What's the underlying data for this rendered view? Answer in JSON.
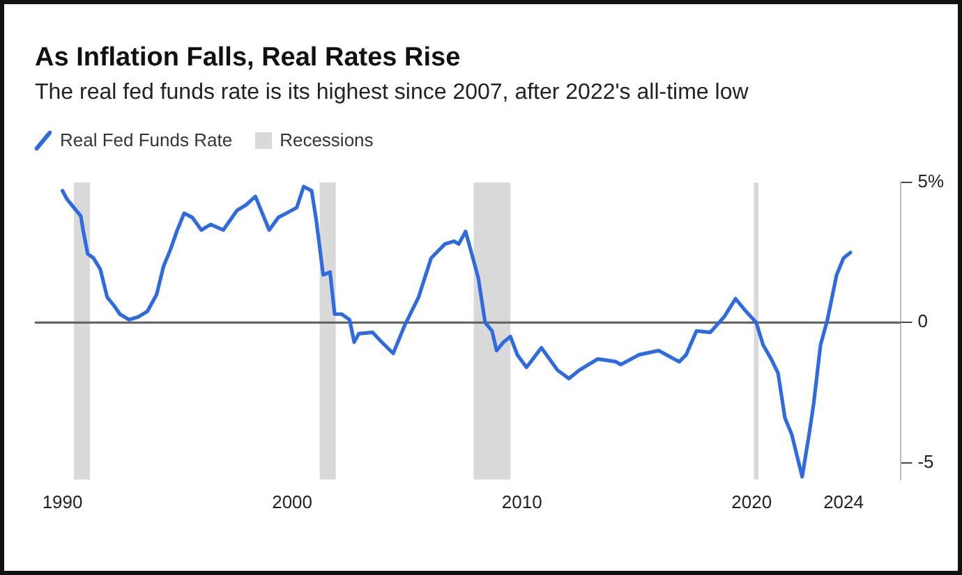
{
  "chart_data": {
    "type": "line",
    "title": "As Inflation Falls, Real Rates Rise",
    "subtitle": "The real fed funds rate is its highest since 2007, after 2022's all-time low",
    "series": [
      {
        "name": "Real Fed Funds Rate",
        "color": "#2f6be0",
        "x": [
          1990.0,
          1990.2,
          1990.5,
          1990.8,
          1990.9,
          1991.1,
          1991.35,
          1991.65,
          1991.95,
          1992.25,
          1992.5,
          1992.9,
          1993.3,
          1993.7,
          1994.1,
          1994.4,
          1994.7,
          1995.0,
          1995.3,
          1995.65,
          1996.05,
          1996.45,
          1997.0,
          1997.6,
          1998.0,
          1998.4,
          1998.7,
          1999.0,
          1999.4,
          1999.75,
          2000.2,
          2000.5,
          2000.85,
          2001.05,
          2001.35,
          2001.65,
          2001.85,
          2002.15,
          2002.5,
          2002.7,
          2002.9,
          2003.5,
          2003.9,
          2004.4,
          2004.9,
          2005.5,
          2006.05,
          2006.65,
          2007.05,
          2007.25,
          2007.55,
          2007.8,
          2008.1,
          2008.4,
          2008.7,
          2008.9,
          2009.2,
          2009.5,
          2009.8,
          2010.2,
          2010.85,
          2011.55,
          2012.05,
          2012.5,
          2013.3,
          2014.1,
          2014.3,
          2015.1,
          2015.95,
          2016.85,
          2017.15,
          2017.6,
          2018.2,
          2018.8,
          2019.3,
          2019.7,
          2020.2,
          2020.5,
          2020.85,
          2021.15,
          2021.45,
          2021.75,
          2022.2,
          2022.5,
          2022.7,
          2023.0,
          2023.3,
          2023.7,
          2024.0,
          2024.3
        ],
        "values": [
          4.7,
          4.4,
          4.1,
          3.8,
          3.3,
          2.45,
          2.3,
          1.9,
          0.9,
          0.6,
          0.3,
          0.1,
          0.2,
          0.4,
          1.0,
          2.0,
          2.6,
          3.3,
          3.9,
          3.75,
          3.3,
          3.5,
          3.3,
          4.0,
          4.2,
          4.5,
          3.9,
          3.3,
          3.75,
          3.9,
          4.1,
          4.85,
          4.7,
          3.65,
          1.7,
          1.8,
          0.3,
          0.3,
          0.1,
          -0.7,
          -0.4,
          -0.35,
          -0.7,
          -1.1,
          -0.1,
          0.9,
          2.3,
          2.8,
          2.9,
          2.8,
          3.25,
          2.5,
          1.6,
          0.0,
          -0.3,
          -1.0,
          -0.7,
          -0.5,
          -1.15,
          -1.6,
          -0.9,
          -1.7,
          -2.0,
          -1.7,
          -1.3,
          -1.4,
          -1.5,
          -1.15,
          -1.0,
          -1.4,
          -1.15,
          -0.3,
          -0.35,
          0.2,
          0.85,
          0.45,
          0.0,
          -0.8,
          -1.3,
          -1.8,
          -3.4,
          -4.0,
          -5.5,
          -4.0,
          -2.9,
          -0.8,
          0.1,
          1.7,
          2.3,
          2.5
        ]
      }
    ],
    "xlim": [
      1988.8,
      2026.5
    ],
    "xticks": [
      1990,
      2000,
      2010,
      2020,
      2024
    ],
    "ylim": [
      -5.6,
      5
    ],
    "yticks": [
      {
        "value": 5,
        "label": "5%"
      },
      0,
      -5
    ],
    "bands": [
      {
        "axis": "x",
        "from": 1990.5,
        "to": 1991.2,
        "label": "Recessions",
        "color": "#d9d9d9"
      },
      {
        "axis": "x",
        "from": 2001.2,
        "to": 2001.9,
        "color": "#d9d9d9"
      },
      {
        "axis": "x",
        "from": 2007.9,
        "to": 2009.5,
        "color": "#d9d9d9"
      },
      {
        "axis": "x",
        "from": 2020.1,
        "to": 2020.3,
        "color": "#d9d9d9"
      }
    ],
    "ref_lines": [
      {
        "axis": "y",
        "value": 0,
        "color": "#666666"
      }
    ],
    "grid": false,
    "legend": "top left",
    "marker": "none",
    "line_style": "solid"
  }
}
